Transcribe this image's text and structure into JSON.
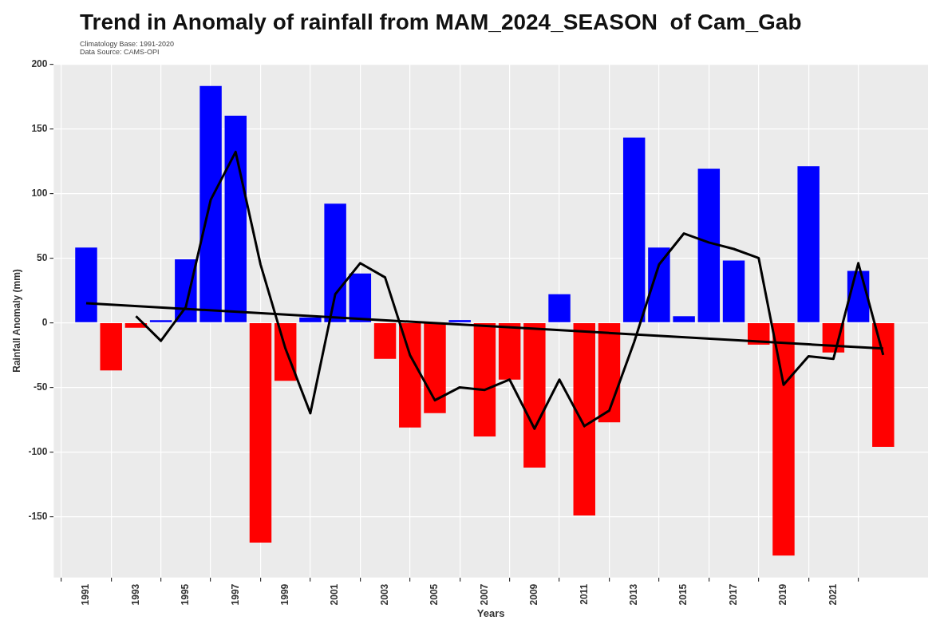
{
  "chart_data": {
    "type": "bar",
    "title": "Trend in Anomaly of rainfall from MAM_2024_SEASON  of Cam_Gab",
    "subtitle": "Climatology Base: 1991-2020",
    "annotations": [
      "Data Source: CAMS-OPI"
    ],
    "xlabel": "Years",
    "ylabel": "Rainfall Anomaly (mm)",
    "x": [
      1991,
      1992,
      1993,
      1994,
      1995,
      1996,
      1997,
      1998,
      1999,
      2000,
      2001,
      2002,
      2003,
      2004,
      2005,
      2006,
      2007,
      2008,
      2009,
      2010,
      2011,
      2012,
      2013,
      2014,
      2015,
      2016,
      2017,
      2018,
      2019,
      2020,
      2021,
      2022,
      2023
    ],
    "series": [
      {
        "values": [
          58,
          -37,
          -4,
          2,
          49,
          183,
          160,
          -170,
          -45,
          4,
          92,
          38,
          -28,
          -81,
          -70,
          2,
          -88,
          -44,
          -112,
          22,
          -149,
          -77,
          143,
          58,
          5,
          119,
          48,
          -17,
          -180,
          121,
          -23,
          40,
          -96
        ],
        "colors": [
          "#0000ff",
          "#ff0000",
          "#ff0000",
          "#0000ff",
          "#0000ff",
          "#0000ff",
          "#0000ff",
          "#ff0000",
          "#ff0000",
          "#0000ff",
          "#0000ff",
          "#0000ff",
          "#ff0000",
          "#ff0000",
          "#ff0000",
          "#0000ff",
          "#ff0000",
          "#ff0000",
          "#ff0000",
          "#0000ff",
          "#ff0000",
          "#ff0000",
          "#0000ff",
          "#0000ff",
          "#0000ff",
          "#0000ff",
          "#0000ff",
          "#ff0000",
          "#ff0000",
          "#0000ff",
          "#ff0000",
          "#0000ff",
          "#ff0000"
        ]
      },
      {
        "type": "line",
        "color": "#000000",
        "x": [
          1993,
          1994,
          1995,
          1996,
          1997,
          1998,
          1999,
          2000,
          2001,
          2002,
          2003,
          2004,
          2005,
          2006,
          2007,
          2008,
          2009,
          2010,
          2011,
          2012,
          2013,
          2014,
          2015,
          2016,
          2017,
          2018,
          2019,
          2020,
          2021,
          2022,
          2023
        ],
        "values": [
          5,
          -14,
          12,
          95,
          132,
          45,
          -20,
          -70,
          22,
          46,
          35,
          -25,
          -60,
          -50,
          -52,
          -44,
          -82,
          -44,
          -80,
          -68,
          -15,
          45,
          69,
          62,
          57,
          50,
          -48,
          -26,
          -28,
          46,
          -25
        ]
      },
      {
        "type": "line",
        "color": "#000000",
        "x": [
          1991,
          2023
        ],
        "values": [
          15,
          -20
        ]
      }
    ],
    "xlim": [
      1989.7,
      2024.8
    ],
    "xticks": [
      1991,
      1993,
      1995,
      1997,
      1999,
      2001,
      2003,
      2005,
      2007,
      2009,
      2011,
      2013,
      2015,
      2017,
      2019,
      2021
    ],
    "ylim": [
      -197,
      200
    ],
    "yticks": [
      -150,
      -100,
      -50,
      0,
      50,
      100,
      150,
      200
    ],
    "grid": true,
    "legend": false,
    "marker": "none"
  }
}
